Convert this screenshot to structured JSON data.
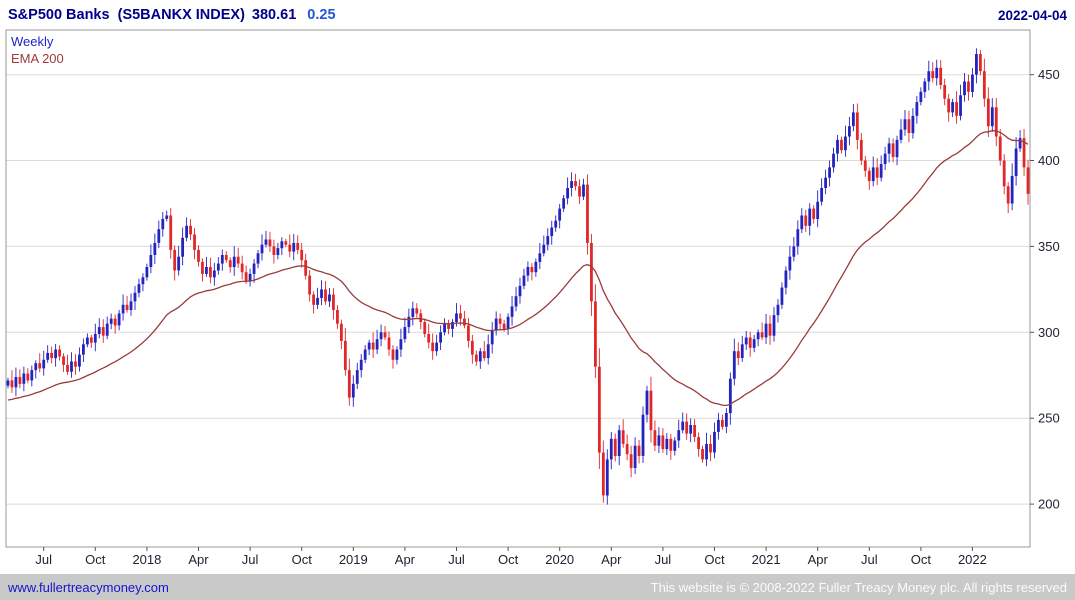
{
  "header": {
    "title": "S&P500 Banks  (S5BANKX INDEX)",
    "value": "380.61",
    "change": "0.25",
    "date": "2022-04-04"
  },
  "legend": {
    "frequency": "Weekly",
    "ema": "EMA 200"
  },
  "footer": {
    "link": "www.fullertreacymoney.com",
    "copyright": "This website is © 2008-2022 Fuller Treacy Money plc. All rights reserved"
  },
  "colors": {
    "up": "#2323c0",
    "down": "#e02828",
    "ema": "#9a3b3b",
    "header_navy": "#00008b",
    "change_blue": "#2255dd",
    "link_blue": "#1414cc",
    "axis_text": "#222233",
    "grid": "#dcdcdc",
    "frame": "#999999",
    "tick": "#555555",
    "footer_bg": "#c9c9c9",
    "footer_text": "#fbfbfb"
  },
  "chart_data": {
    "type": "candlestick",
    "title": "S&P500 Banks (S5BANKX INDEX)",
    "frequency": "Weekly",
    "overlay": "EMA 200",
    "last_close": 380.61,
    "change": 0.25,
    "grid": "horizontal",
    "legend_position": "top-left",
    "ylim": [
      175,
      476
    ],
    "y_ticks": [
      200,
      250,
      300,
      350,
      400,
      450
    ],
    "x_ticks": [
      {
        "i": 9,
        "label": "Jul"
      },
      {
        "i": 22,
        "label": "Oct"
      },
      {
        "i": 35,
        "label": "2018"
      },
      {
        "i": 48,
        "label": "Apr"
      },
      {
        "i": 61,
        "label": "Jul"
      },
      {
        "i": 74,
        "label": "Oct"
      },
      {
        "i": 87,
        "label": "2019"
      },
      {
        "i": 100,
        "label": "Apr"
      },
      {
        "i": 113,
        "label": "Jul"
      },
      {
        "i": 126,
        "label": "Oct"
      },
      {
        "i": 139,
        "label": "2020"
      },
      {
        "i": 152,
        "label": "Apr"
      },
      {
        "i": 165,
        "label": "Jul"
      },
      {
        "i": 178,
        "label": "Oct"
      },
      {
        "i": 191,
        "label": "2021"
      },
      {
        "i": 204,
        "label": "Apr"
      },
      {
        "i": 217,
        "label": "Jul"
      },
      {
        "i": 230,
        "label": "Oct"
      },
      {
        "i": 243,
        "label": "2022"
      }
    ],
    "ema": {
      "period_days": 200,
      "period_weeks": 40,
      "seed": 260
    },
    "closes": [
      272,
      268,
      274,
      270,
      276,
      272,
      278,
      282,
      279,
      284,
      288,
      285,
      290,
      286,
      281,
      277,
      283,
      280,
      287,
      293,
      297,
      294,
      299,
      303,
      298,
      305,
      308,
      304,
      311,
      316,
      313,
      318,
      323,
      328,
      332,
      338,
      345,
      352,
      360,
      366,
      368,
      348,
      336,
      344,
      355,
      362,
      357,
      348,
      341,
      334,
      338,
      332,
      336,
      340,
      345,
      342,
      338,
      344,
      340,
      335,
      330,
      334,
      340,
      346,
      351,
      354,
      350,
      345,
      349,
      353,
      351,
      347,
      352,
      348,
      342,
      333,
      322,
      316,
      320,
      325,
      318,
      322,
      313,
      305,
      295,
      278,
      262,
      270,
      278,
      284,
      290,
      294,
      290,
      296,
      300,
      297,
      290,
      284,
      290,
      296,
      303,
      309,
      314,
      311,
      306,
      299,
      294,
      289,
      294,
      300,
      305,
      302,
      306,
      311,
      308,
      304,
      295,
      287,
      283,
      289,
      285,
      293,
      301,
      308,
      305,
      302,
      309,
      315,
      321,
      327,
      333,
      338,
      335,
      341,
      346,
      351,
      356,
      361,
      365,
      372,
      378,
      384,
      388,
      385,
      379,
      386,
      352,
      318,
      280,
      230,
      205,
      226,
      238,
      228,
      243,
      235,
      229,
      221,
      234,
      228,
      252,
      266,
      243,
      234,
      240,
      232,
      238,
      231,
      237,
      243,
      248,
      241,
      246,
      239,
      232,
      226,
      235,
      230,
      242,
      249,
      245,
      253,
      273,
      289,
      285,
      293,
      297,
      291,
      296,
      300,
      297,
      305,
      298,
      310,
      316,
      326,
      336,
      344,
      350,
      360,
      368,
      362,
      372,
      366,
      376,
      384,
      390,
      396,
      404,
      412,
      406,
      414,
      420,
      428,
      412,
      400,
      394,
      388,
      396,
      390,
      398,
      404,
      410,
      402,
      412,
      418,
      424,
      416,
      426,
      434,
      440,
      446,
      452,
      448,
      454,
      444,
      436,
      428,
      434,
      426,
      438,
      446,
      440,
      450,
      462,
      452,
      436,
      420,
      431,
      414,
      400,
      385,
      375,
      391,
      407,
      413,
      396,
      380.61
    ]
  }
}
